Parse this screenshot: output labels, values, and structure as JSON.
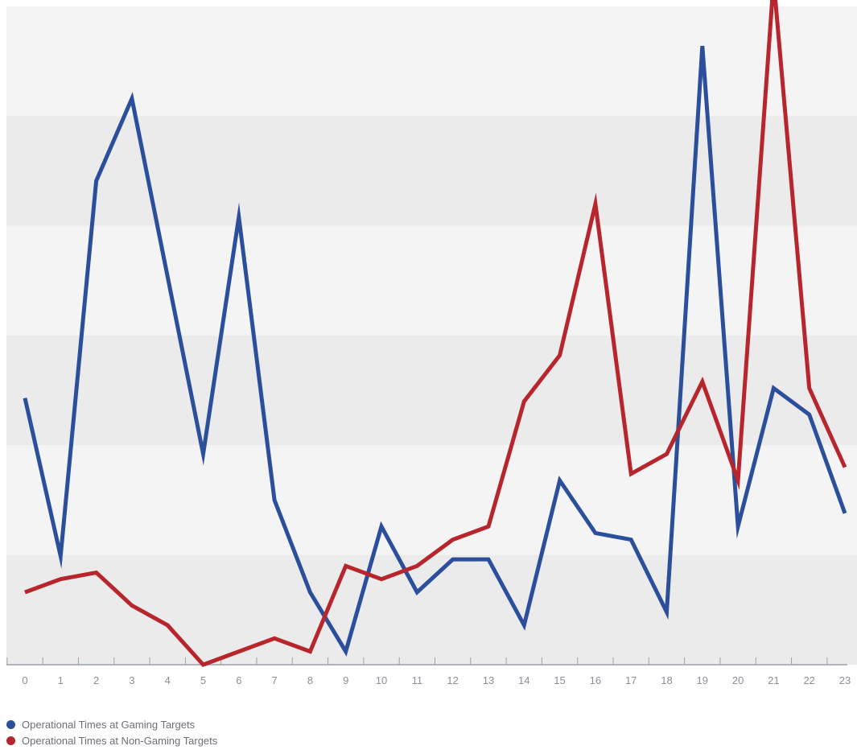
{
  "chart_data": {
    "type": "line",
    "x": [
      0,
      1,
      2,
      3,
      4,
      5,
      6,
      7,
      8,
      9,
      10,
      11,
      12,
      13,
      14,
      15,
      16,
      17,
      18,
      19,
      20,
      21,
      22,
      23
    ],
    "ylim": [
      0,
      100
    ],
    "grid": "alternating horizontal bands",
    "legend_position": "bottom-left",
    "series": [
      {
        "name": "Operational Times at Gaming Targets",
        "color": "#2b4f9b",
        "values": [
          40.5,
          16.5,
          73.5,
          86,
          59,
          32,
          68,
          25,
          11,
          2,
          21,
          11,
          16,
          16,
          6,
          28,
          20,
          19,
          8,
          94,
          21,
          42,
          38,
          23
        ]
      },
      {
        "name": "Operational Times at Non-Gaming Targets",
        "color": "#b8262d",
        "values": [
          11,
          13,
          14,
          9,
          6,
          0,
          2,
          4,
          2,
          15,
          13,
          15,
          19,
          21,
          40,
          47,
          70,
          29,
          32,
          43,
          28,
          104,
          42,
          30
        ]
      }
    ]
  }
}
